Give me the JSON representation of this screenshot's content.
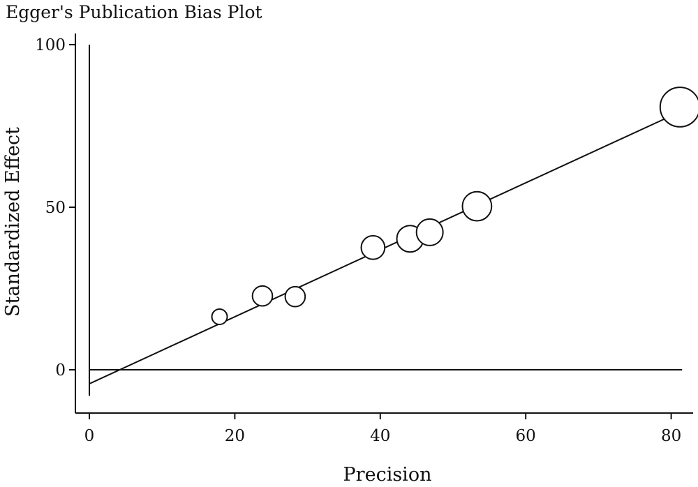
{
  "chart_data": {
    "type": "scatter",
    "title": "Egger's Publication Bias Plot",
    "xlabel": "Precision",
    "ylabel": "Standardized Effect",
    "xlim": [
      -2,
      83
    ],
    "ylim": [
      -12,
      103
    ],
    "x_ticks": [
      0,
      20,
      40,
      60,
      80
    ],
    "y_ticks": [
      0,
      50,
      100
    ],
    "grid": false,
    "points": [
      {
        "x": 17.9,
        "y": 16.3,
        "weight": 1
      },
      {
        "x": 23.8,
        "y": 22.7,
        "weight": 2
      },
      {
        "x": 28.3,
        "y": 22.5,
        "weight": 2
      },
      {
        "x": 39.0,
        "y": 37.6,
        "weight": 3
      },
      {
        "x": 44.1,
        "y": 40.3,
        "weight": 4
      },
      {
        "x": 46.8,
        "y": 42.3,
        "weight": 4
      },
      {
        "x": 53.3,
        "y": 50.3,
        "weight": 5
      },
      {
        "x": 81.2,
        "y": 80.8,
        "weight": 10
      }
    ],
    "regression_line": {
      "intercept": -4.3,
      "slope": 1.03,
      "x_range": [
        0,
        81
      ]
    },
    "reference_lines": {
      "horizontal_y": 0,
      "vertical_x": 0,
      "vertical_y_range": [
        -8,
        100
      ],
      "horizontal_x_range": [
        0,
        81.5
      ]
    }
  }
}
